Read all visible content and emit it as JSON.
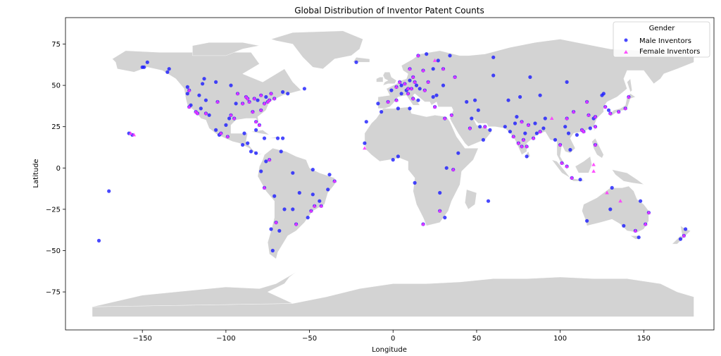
{
  "chart_data": {
    "type": "scatter",
    "title": "Global Distribution of Inventor Patent Counts",
    "xlabel": "Longitude",
    "ylabel": "Latitude",
    "xlim": [
      -196,
      192
    ],
    "ylim": [
      -98,
      91
    ],
    "xticks": [
      -150,
      -100,
      -50,
      0,
      50,
      100,
      150
    ],
    "yticks": [
      -75,
      -50,
      -25,
      0,
      25,
      50,
      75
    ],
    "xtick_labels": [
      "−150",
      "−100",
      "−50",
      "0",
      "50",
      "100",
      "150"
    ],
    "ytick_labels": [
      "−75",
      "−50",
      "−25",
      "0",
      "25",
      "50",
      "75"
    ],
    "grid": false,
    "background_map": "world land masses (light gray)",
    "legend": {
      "title": "Gender",
      "placement": "top-right",
      "entries": [
        "Male Inventors",
        "Female Inventors"
      ]
    },
    "colors": {
      "male": "#1a1aff",
      "female": "#ff33ff",
      "land": "#d3d3d3"
    },
    "series": [
      {
        "name": "Male Inventors",
        "marker": "circle",
        "points": [
          [
            -122,
            47
          ],
          [
            -122,
            37
          ],
          [
            -118,
            34
          ],
          [
            -117,
            33
          ],
          [
            -121,
            38
          ],
          [
            -112,
            33
          ],
          [
            -105,
            40
          ],
          [
            -97,
            32
          ],
          [
            -95,
            30
          ],
          [
            -98,
            30
          ],
          [
            -87,
            42
          ],
          [
            -84,
            34
          ],
          [
            -80,
            26
          ],
          [
            -82,
            28
          ],
          [
            -77,
            39
          ],
          [
            -74,
            41
          ],
          [
            -71,
            42
          ],
          [
            -75,
            40
          ],
          [
            -83,
            42
          ],
          [
            -81,
            41
          ],
          [
            -90,
            39
          ],
          [
            -94,
            39
          ],
          [
            -93,
            45
          ],
          [
            -88,
            43
          ],
          [
            -86,
            40
          ],
          [
            -79,
            35
          ],
          [
            -76,
            43
          ],
          [
            -73,
            45
          ],
          [
            -79,
            44
          ],
          [
            -123,
            49
          ],
          [
            -114,
            51
          ],
          [
            -113,
            54
          ],
          [
            -97,
            50
          ],
          [
            -106,
            52
          ],
          [
            -63,
            45
          ],
          [
            -53,
            48
          ],
          [
            -66,
            46
          ],
          [
            -110,
            32
          ],
          [
            -115,
            36
          ],
          [
            -112,
            41
          ],
          [
            -116,
            44
          ],
          [
            -123,
            45
          ],
          [
            -104,
            20
          ],
          [
            -103,
            21
          ],
          [
            -99,
            19
          ],
          [
            -100,
            26
          ],
          [
            -89,
            21
          ],
          [
            -106,
            23
          ],
          [
            -82,
            9
          ],
          [
            -74,
            5
          ],
          [
            -76,
            4
          ],
          [
            -67,
            10
          ],
          [
            -79,
            -2
          ],
          [
            -77,
            -12
          ],
          [
            -71,
            -17
          ],
          [
            -70,
            -33
          ],
          [
            -73,
            -37
          ],
          [
            -68,
            -38
          ],
          [
            -58,
            -34
          ],
          [
            -65,
            -25
          ],
          [
            -47,
            -23
          ],
          [
            -43,
            -23
          ],
          [
            -49,
            -26
          ],
          [
            -51,
            -30
          ],
          [
            -44,
            -20
          ],
          [
            -39,
            -13
          ],
          [
            -35,
            -8
          ],
          [
            -38,
            -4
          ],
          [
            -48,
            -1
          ],
          [
            -60,
            -3
          ],
          [
            -56,
            -15
          ],
          [
            -48,
            -16
          ],
          [
            -60,
            -25
          ],
          [
            -72,
            -50
          ],
          [
            -158,
            21
          ],
          [
            -156,
            20
          ],
          [
            -150,
            61
          ],
          [
            -147,
            64
          ],
          [
            -135,
            58
          ],
          [
            -134,
            60
          ],
          [
            -170,
            -14
          ],
          [
            -176,
            -44
          ],
          [
            -3,
            40
          ],
          [
            2,
            41
          ],
          [
            -9,
            39
          ],
          [
            2,
            49
          ],
          [
            5,
            45
          ],
          [
            -1,
            47
          ],
          [
            7,
            51
          ],
          [
            9,
            48
          ],
          [
            11,
            48
          ],
          [
            13,
            52
          ],
          [
            10,
            53
          ],
          [
            4,
            52
          ],
          [
            5,
            50
          ],
          [
            8,
            47
          ],
          [
            12,
            42
          ],
          [
            9,
            45
          ],
          [
            15,
            41
          ],
          [
            19,
            47
          ],
          [
            21,
            52
          ],
          [
            14,
            50
          ],
          [
            16,
            48
          ],
          [
            24,
            60
          ],
          [
            18,
            59
          ],
          [
            10,
            60
          ],
          [
            12,
            55
          ],
          [
            25,
            37
          ],
          [
            24,
            43
          ],
          [
            26,
            44
          ],
          [
            30,
            50
          ],
          [
            37,
            55
          ],
          [
            30,
            60
          ],
          [
            44,
            40
          ],
          [
            49,
            41
          ],
          [
            69,
            41
          ],
          [
            76,
            43
          ],
          [
            60,
            56
          ],
          [
            82,
            55
          ],
          [
            104,
            52
          ],
          [
            35,
            32
          ],
          [
            31,
            30
          ],
          [
            46,
            24
          ],
          [
            55,
            25
          ],
          [
            51,
            35
          ],
          [
            67,
            25
          ],
          [
            74,
            31
          ],
          [
            77,
            28
          ],
          [
            72,
            19
          ],
          [
            80,
            13
          ],
          [
            77,
            13
          ],
          [
            78,
            17
          ],
          [
            88,
            22
          ],
          [
            85,
            27
          ],
          [
            90,
            24
          ],
          [
            80,
            7
          ],
          [
            100,
            14
          ],
          [
            106,
            11
          ],
          [
            101,
            3
          ],
          [
            104,
            1
          ],
          [
            107,
            -6
          ],
          [
            112,
            -7
          ],
          [
            121,
            14
          ],
          [
            114,
            22
          ],
          [
            116,
            40
          ],
          [
            121,
            31
          ],
          [
            113,
            23
          ],
          [
            104,
            30
          ],
          [
            108,
            34
          ],
          [
            117,
            32
          ],
          [
            121,
            25
          ],
          [
            127,
            37
          ],
          [
            129,
            35
          ],
          [
            139,
            36
          ],
          [
            135,
            34
          ],
          [
            141,
            43
          ],
          [
            130,
            33
          ],
          [
            145,
            -38
          ],
          [
            151,
            -34
          ],
          [
            153,
            -27
          ],
          [
            138,
            -35
          ],
          [
            116,
            -32
          ],
          [
            147,
            -42
          ],
          [
            175,
            -37
          ],
          [
            174,
            -41
          ],
          [
            172,
            -43
          ],
          [
            3,
            7
          ],
          [
            0,
            5
          ],
          [
            -17,
            15
          ],
          [
            36,
            -1
          ],
          [
            39,
            9
          ],
          [
            32,
            0
          ],
          [
            28,
            -26
          ],
          [
            18,
            -34
          ],
          [
            31,
            -30
          ],
          [
            57,
            -20
          ],
          [
            13,
            -9
          ],
          [
            28,
            -15
          ],
          [
            -7,
            34
          ],
          [
            10,
            36
          ],
          [
            3,
            36
          ],
          [
            -16,
            28
          ],
          [
            -22,
            64
          ],
          [
            -149,
            61
          ],
          [
            58,
            23
          ],
          [
            52,
            25
          ],
          [
            47,
            30
          ],
          [
            54,
            17
          ],
          [
            97,
            17
          ],
          [
            105,
            21
          ],
          [
            -85,
            10
          ],
          [
            -90,
            14
          ],
          [
            -87,
            15
          ],
          [
            -69,
            18
          ],
          [
            -77,
            18
          ],
          [
            -66,
            18
          ],
          [
            -82,
            23
          ],
          [
            131,
            -12
          ],
          [
            148,
            -20
          ],
          [
            130,
            -25
          ],
          [
            120,
            30
          ],
          [
            118,
            24
          ],
          [
            110,
            20
          ],
          [
            125,
            44
          ],
          [
            126,
            45
          ],
          [
            88,
            44
          ],
          [
            91,
            30
          ],
          [
            103,
            25
          ],
          [
            86,
            21
          ],
          [
            75,
            15
          ],
          [
            70,
            22
          ],
          [
            79,
            21
          ],
          [
            81,
            26
          ],
          [
            73,
            27
          ],
          [
            84,
            18
          ],
          [
            15,
            68
          ],
          [
            20,
            69
          ],
          [
            27,
            65
          ],
          [
            34,
            68
          ],
          [
            60,
            67
          ]
        ]
      },
      {
        "name": "Female Inventors",
        "marker": "triangle",
        "points": [
          [
            -122,
            37
          ],
          [
            -118,
            34
          ],
          [
            -117,
            33
          ],
          [
            -97,
            32
          ],
          [
            -95,
            30
          ],
          [
            -87,
            42
          ],
          [
            -84,
            34
          ],
          [
            -77,
            39
          ],
          [
            -74,
            41
          ],
          [
            -71,
            42
          ],
          [
            -75,
            40
          ],
          [
            -83,
            42
          ],
          [
            -90,
            39
          ],
          [
            -93,
            45
          ],
          [
            -79,
            35
          ],
          [
            -80,
            26
          ],
          [
            -112,
            33
          ],
          [
            -105,
            40
          ],
          [
            -122,
            47
          ],
          [
            -86,
            40
          ],
          [
            -82,
            28
          ],
          [
            -88,
            43
          ],
          [
            -79,
            44
          ],
          [
            -73,
            45
          ],
          [
            -99,
            19
          ],
          [
            -103,
            21
          ],
          [
            -74,
            5
          ],
          [
            -77,
            -12
          ],
          [
            -70,
            -33
          ],
          [
            -58,
            -34
          ],
          [
            -47,
            -23
          ],
          [
            -43,
            -23
          ],
          [
            -49,
            -26
          ],
          [
            -35,
            -8
          ],
          [
            -157,
            21
          ],
          [
            2,
            41
          ],
          [
            -3,
            40
          ],
          [
            2,
            49
          ],
          [
            7,
            51
          ],
          [
            9,
            48
          ],
          [
            11,
            48
          ],
          [
            13,
            52
          ],
          [
            4,
            52
          ],
          [
            12,
            42
          ],
          [
            9,
            45
          ],
          [
            19,
            47
          ],
          [
            21,
            52
          ],
          [
            18,
            59
          ],
          [
            10,
            60
          ],
          [
            12,
            55
          ],
          [
            25,
            37
          ],
          [
            37,
            55
          ],
          [
            30,
            60
          ],
          [
            35,
            32
          ],
          [
            31,
            30
          ],
          [
            55,
            25
          ],
          [
            72,
            19
          ],
          [
            77,
            28
          ],
          [
            80,
            13
          ],
          [
            77,
            13
          ],
          [
            78,
            17
          ],
          [
            88,
            22
          ],
          [
            100,
            14
          ],
          [
            101,
            3
          ],
          [
            104,
            1
          ],
          [
            107,
            -6
          ],
          [
            121,
            14
          ],
          [
            114,
            22
          ],
          [
            116,
            40
          ],
          [
            121,
            31
          ],
          [
            113,
            23
          ],
          [
            104,
            30
          ],
          [
            117,
            32
          ],
          [
            121,
            25
          ],
          [
            127,
            37
          ],
          [
            139,
            36
          ],
          [
            135,
            34
          ],
          [
            151,
            -34
          ],
          [
            153,
            -27
          ],
          [
            145,
            -38
          ],
          [
            174,
            -41
          ],
          [
            28,
            -26
          ],
          [
            18,
            -34
          ],
          [
            36,
            -1
          ],
          [
            -17,
            12
          ],
          [
            46,
            24
          ],
          [
            95,
            30
          ],
          [
            120,
            -2
          ],
          [
            120,
            2
          ],
          [
            128,
            -15
          ],
          [
            136,
            -20
          ],
          [
            -155,
            20
          ],
          [
            108,
            34
          ],
          [
            81,
            26
          ],
          [
            84,
            18
          ],
          [
            75,
            15
          ],
          [
            15,
            68
          ],
          [
            25,
            65
          ],
          [
            130,
            33
          ],
          [
            141,
            43
          ]
        ]
      }
    ]
  }
}
